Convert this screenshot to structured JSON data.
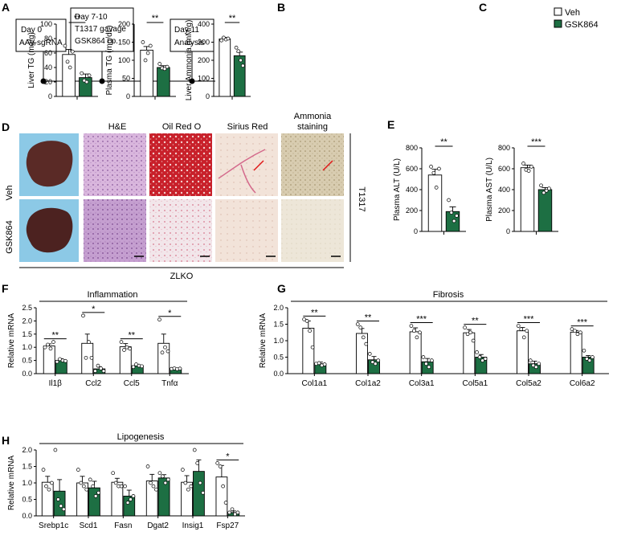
{
  "colors": {
    "veh": "#ffffff",
    "gsk": "#1d6f43"
  },
  "legend": {
    "veh": "Veh",
    "gsk": "GSK864"
  },
  "panelA": {
    "letter": "A",
    "boxes": [
      "Day 0",
      "AAV-sgRNA",
      "Day 7-10",
      "T1317 gavage",
      "GSK864 i.p.",
      "Day 11",
      "Analysis"
    ]
  },
  "panelD": {
    "letter": "D",
    "columns": [
      "H&E",
      "Oil Red O",
      "Sirius Red",
      "Ammonia",
      "staining"
    ],
    "rows": [
      "Veh",
      "GSK864"
    ],
    "side": "T1317",
    "bottom": "ZLKO"
  },
  "chart_data": [
    {
      "id": "B1",
      "letter": "B",
      "type": "bar",
      "ylabel": "Liver TG (mg/g)",
      "ylim": [
        0,
        100
      ],
      "yticks": [
        0,
        20,
        40,
        60,
        80,
        100
      ],
      "categories": [
        "Veh",
        "GSK864"
      ],
      "values": [
        58,
        26
      ],
      "sem": [
        7,
        5
      ],
      "points": [
        [
          70,
          48,
          40,
          62
        ],
        [
          32,
          22,
          20,
          29
        ]
      ],
      "significance": [
        {
          "label": "**",
          "from": 0,
          "to": 1
        }
      ]
    },
    {
      "id": "B2",
      "type": "bar",
      "ylabel": "Plasma TG (mg/dL)",
      "ylim": [
        0,
        200
      ],
      "yticks": [
        0,
        50,
        100,
        150,
        200
      ],
      "categories": [
        "Veh",
        "GSK864"
      ],
      "values": [
        128,
        80
      ],
      "sem": [
        10,
        5
      ],
      "points": [
        [
          150,
          100,
          120,
          140
        ],
        [
          90,
          78,
          76,
          82
        ]
      ],
      "significance": [
        {
          "label": "**",
          "from": 0,
          "to": 1
        }
      ]
    },
    {
      "id": "C",
      "letter": "C",
      "type": "bar",
      "ylabel": "Liver Ammonia (mM/g)",
      "ylim": [
        0,
        400
      ],
      "yticks": [
        0,
        100,
        200,
        300,
        400
      ],
      "categories": [
        "Veh",
        "GSK864"
      ],
      "values": [
        318,
        225
      ],
      "sem": [
        8,
        20
      ],
      "points": [
        [
          310,
          325,
          315,
          320
        ],
        [
          270,
          250,
          200,
          170
        ]
      ],
      "significance": [
        {
          "label": "**",
          "from": 0,
          "to": 1
        }
      ]
    },
    {
      "id": "E1",
      "letter": "E",
      "type": "bar",
      "ylabel": "Plasma ALT (U/L)",
      "ylim": [
        0,
        800
      ],
      "yticks": [
        0,
        200,
        400,
        600,
        800
      ],
      "categories": [
        "Veh",
        "GSK864"
      ],
      "values": [
        540,
        190
      ],
      "sem": [
        55,
        45
      ],
      "points": [
        [
          620,
          560,
          420,
          600
        ],
        [
          300,
          180,
          100,
          150
        ]
      ],
      "significance": [
        {
          "label": "**",
          "from": 0,
          "to": 1
        }
      ]
    },
    {
      "id": "E2",
      "type": "bar",
      "ylabel": "Plasma AST (U/L)",
      "ylim": [
        0,
        800
      ],
      "yticks": [
        0,
        200,
        400,
        600,
        800
      ],
      "categories": [
        "Veh",
        "GSK864"
      ],
      "values": [
        610,
        400
      ],
      "sem": [
        25,
        20
      ],
      "points": [
        [
          650,
          590,
          580,
          620
        ],
        [
          440,
          370,
          390,
          410
        ]
      ],
      "significance": [
        {
          "label": "***",
          "from": 0,
          "to": 1
        }
      ]
    },
    {
      "id": "F",
      "letter": "F",
      "type": "bar",
      "title": "Inflammation",
      "ylabel": "Relative mRNA",
      "ylim": [
        0,
        2.5
      ],
      "yticks": [
        0,
        0.5,
        1.0,
        1.5,
        2.0,
        2.5
      ],
      "categories": [
        "Il1β",
        "Ccl2",
        "Ccl5",
        "Tnfα"
      ],
      "series": [
        {
          "name": "Veh",
          "values": [
            1.05,
            1.15,
            1.02,
            1.15
          ],
          "sem": [
            0.08,
            0.35,
            0.12,
            0.35
          ]
        },
        {
          "name": "GSK864",
          "values": [
            0.5,
            0.18,
            0.3,
            0.18
          ],
          "sem": [
            0.06,
            0.08,
            0.05,
            0.02
          ]
        }
      ],
      "points": [
        [
          [
            1.0,
            1.1,
            0.95,
            1.2
          ],
          [
            0.45,
            0.55,
            0.5,
            0.48
          ]
        ],
        [
          [
            2.2,
            0.6,
            1.2,
            0.6
          ],
          [
            0.1,
            0.3,
            0.2,
            0.1
          ]
        ],
        [
          [
            1.2,
            0.9,
            1.0,
            0.95
          ],
          [
            0.25,
            0.35,
            0.3,
            0.28
          ]
        ],
        [
          [
            2.05,
            0.8,
            1.0,
            0.85
          ],
          [
            0.18,
            0.2,
            0.17,
            0.19
          ]
        ]
      ],
      "significance": [
        "**",
        "*",
        "**",
        "*"
      ]
    },
    {
      "id": "G",
      "letter": "G",
      "type": "bar",
      "title": "Fibrosis",
      "ylabel": "Relative mRNA",
      "ylim": [
        0,
        2.0
      ],
      "yticks": [
        0,
        0.5,
        1.0,
        1.5,
        2.0
      ],
      "categories": [
        "Col1a1",
        "Col1a2",
        "Col3a1",
        "Col5a1",
        "Col5a2",
        "Col6a2"
      ],
      "series": [
        {
          "name": "Veh",
          "values": [
            1.38,
            1.22,
            1.27,
            1.24,
            1.3,
            1.26
          ],
          "sem": [
            0.22,
            0.15,
            0.12,
            0.1,
            0.1,
            0.05
          ]
        },
        {
          "name": "GSK864",
          "values": [
            0.3,
            0.42,
            0.36,
            0.5,
            0.3,
            0.5
          ],
          "sem": [
            0.05,
            0.1,
            0.1,
            0.08,
            0.08,
            0.05
          ]
        }
      ],
      "points": [
        [
          [
            1.65,
            1.6,
            1.3,
            0.8
          ],
          [
            0.3,
            0.32,
            0.25,
            0.28
          ]
        ],
        [
          [
            1.5,
            1.4,
            1.1,
            0.9
          ],
          [
            0.6,
            0.35,
            0.3,
            0.4
          ]
        ],
        [
          [
            1.45,
            1.3,
            1.1,
            1.25
          ],
          [
            0.5,
            0.3,
            0.2,
            0.4
          ]
        ],
        [
          [
            1.4,
            1.2,
            1.25,
            1.0
          ],
          [
            0.65,
            0.5,
            0.4,
            0.45
          ]
        ],
        [
          [
            1.45,
            1.35,
            1.1,
            1.3
          ],
          [
            0.4,
            0.25,
            0.2,
            0.3
          ]
        ],
        [
          [
            1.35,
            1.3,
            1.2,
            1.25
          ],
          [
            0.7,
            0.45,
            0.4,
            0.5
          ]
        ]
      ],
      "significance": [
        "**",
        "**",
        "***",
        "**",
        "***",
        "***"
      ]
    },
    {
      "id": "H",
      "letter": "H",
      "type": "bar",
      "title": "Lipogenesis",
      "ylabel": "Relative mRNA",
      "ylim": [
        0,
        2.0
      ],
      "yticks": [
        0,
        0.5,
        1.0,
        1.5,
        2.0
      ],
      "categories": [
        "Srebp1c",
        "Scd1",
        "Fasn",
        "Dgat2",
        "Insig1",
        "Fsp27"
      ],
      "series": [
        {
          "name": "Veh",
          "values": [
            1.02,
            1.0,
            1.02,
            1.06,
            1.02,
            1.18
          ],
          "sem": [
            0.18,
            0.2,
            0.12,
            0.2,
            0.2,
            0.35
          ]
        },
        {
          "name": "GSK864",
          "values": [
            0.75,
            0.85,
            0.6,
            1.15,
            1.35,
            0.1
          ],
          "sem": [
            0.35,
            0.2,
            0.18,
            0.1,
            0.35,
            0.05
          ]
        }
      ],
      "points": [
        [
          [
            1.4,
            0.9,
            0.8,
            1.0
          ],
          [
            2.1,
            0.5,
            0.3,
            0.2
          ]
        ],
        [
          [
            1.4,
            1.0,
            0.9,
            0.8
          ],
          [
            1.1,
            0.9,
            0.6,
            0.7
          ]
        ],
        [
          [
            1.3,
            1.0,
            0.9,
            0.9
          ],
          [
            0.9,
            0.4,
            0.5,
            0.6
          ]
        ],
        [
          [
            1.5,
            1.0,
            0.9,
            0.8
          ],
          [
            1.3,
            1.2,
            1.0,
            1.1
          ]
        ],
        [
          [
            1.4,
            1.0,
            0.8,
            0.9
          ],
          [
            2.0,
            1.6,
            1.0,
            0.7
          ]
        ],
        [
          [
            1.6,
            1.5,
            0.9,
            0.4
          ],
          [
            0.1,
            0.2,
            0.05,
            0.1
          ]
        ]
      ],
      "significance": [
        "",
        "",
        "",
        "",
        "",
        "*"
      ]
    }
  ]
}
